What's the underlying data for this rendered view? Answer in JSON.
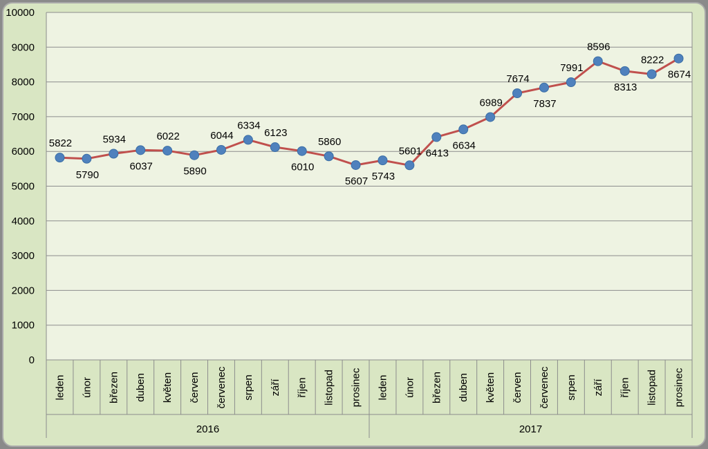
{
  "chart_data": {
    "type": "line",
    "title": "",
    "xlabel": "",
    "ylabel": "",
    "ylim": [
      0,
      10000
    ],
    "yticks": [
      0,
      1000,
      2000,
      3000,
      4000,
      5000,
      6000,
      7000,
      8000,
      9000,
      10000
    ],
    "grid": true,
    "legend": "none",
    "colors": {
      "line": "#c0504d",
      "marker": "#4f81bd",
      "plot_background": "#eef3e2",
      "outer_background": "#d9e6c3",
      "frame": "#8a8a8a"
    },
    "groups": [
      {
        "label": "2016",
        "categories": [
          "leden",
          "únor",
          "březen",
          "duben",
          "květen",
          "červen",
          "červenec",
          "srpen",
          "září",
          "říjen",
          "listopad",
          "prosinec"
        ],
        "values": [
          5822,
          5790,
          5934,
          6037,
          6022,
          5890,
          6044,
          6334,
          6123,
          6010,
          5860,
          5607
        ],
        "label_positions": [
          "above",
          "below",
          "above",
          "below",
          "above",
          "below",
          "above",
          "above",
          "above",
          "below",
          "above",
          "below"
        ]
      },
      {
        "label": "2017",
        "categories": [
          "leden",
          "únor",
          "březen",
          "duben",
          "květen",
          "červen",
          "červenec",
          "srpen",
          "září",
          "říjen",
          "listopad",
          "prosinec"
        ],
        "values": [
          5743,
          5601,
          6413,
          6634,
          6989,
          7674,
          7837,
          7991,
          8596,
          8313,
          8222,
          8674
        ],
        "label_positions": [
          "below",
          "above",
          "below",
          "below",
          "above",
          "above",
          "below",
          "above",
          "above",
          "below",
          "above",
          "below"
        ]
      }
    ]
  }
}
